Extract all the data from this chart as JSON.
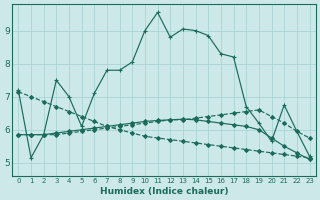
{
  "xlabel": "Humidex (Indice chaleur)",
  "bg_color": "#cce8e8",
  "line_color": "#1a6b5a",
  "grid_color": "#aad4d4",
  "xlim": [
    -0.5,
    23.5
  ],
  "ylim": [
    4.6,
    9.8
  ],
  "x_ticks": [
    0,
    1,
    2,
    3,
    4,
    5,
    6,
    7,
    8,
    9,
    10,
    11,
    12,
    13,
    14,
    15,
    16,
    17,
    18,
    19,
    20,
    21,
    22,
    23
  ],
  "y_ticks": [
    5,
    6,
    7,
    8,
    9
  ],
  "series": [
    {
      "y": [
        7.2,
        5.15,
        5.85,
        7.5,
        7.0,
        6.1,
        7.1,
        7.8,
        7.8,
        8.05,
        9.0,
        9.55,
        8.8,
        9.05,
        9.0,
        8.85,
        8.3,
        8.2,
        6.7,
        6.2,
        5.65,
        6.75,
        5.95,
        5.2
      ],
      "linestyle": "-",
      "marker": "+"
    },
    {
      "y": [
        7.15,
        7.0,
        6.85,
        6.7,
        6.55,
        6.4,
        6.25,
        6.1,
        6.0,
        5.9,
        5.8,
        5.75,
        5.7,
        5.65,
        5.6,
        5.55,
        5.5,
        5.45,
        5.4,
        5.35,
        5.3,
        5.25,
        5.2,
        5.15
      ],
      "linestyle": "--",
      "marker": "D"
    },
    {
      "y": [
        5.85,
        5.85,
        5.85,
        5.85,
        5.9,
        5.95,
        6.0,
        6.05,
        6.1,
        6.15,
        6.2,
        6.25,
        6.3,
        6.3,
        6.35,
        6.4,
        6.45,
        6.5,
        6.55,
        6.6,
        6.4,
        6.2,
        5.95,
        5.75
      ],
      "linestyle": "--",
      "marker": "D"
    },
    {
      "y": [
        5.85,
        5.85,
        5.85,
        5.9,
        5.95,
        6.0,
        6.05,
        6.1,
        6.15,
        6.2,
        6.25,
        6.28,
        6.3,
        6.32,
        6.3,
        6.25,
        6.2,
        6.15,
        6.1,
        6.0,
        5.75,
        5.5,
        5.3,
        5.1
      ],
      "linestyle": "-",
      "marker": "D"
    }
  ]
}
